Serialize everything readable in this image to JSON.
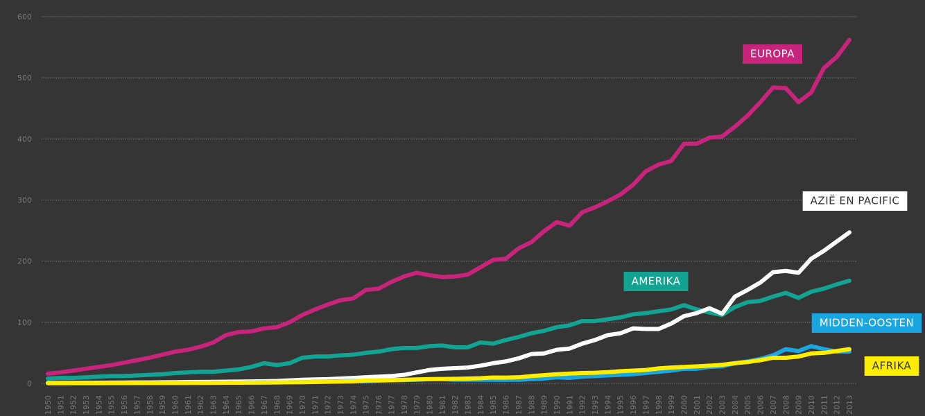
{
  "chart_data": {
    "type": "line",
    "x": [
      1950,
      1951,
      1952,
      1953,
      1954,
      1955,
      1956,
      1957,
      1958,
      1959,
      1960,
      1961,
      1962,
      1963,
      1964,
      1965,
      1966,
      1967,
      1968,
      1969,
      1970,
      1971,
      1972,
      1973,
      1974,
      1975,
      1976,
      1977,
      1978,
      1979,
      1980,
      1981,
      1982,
      1983,
      1984,
      1985,
      1986,
      1987,
      1988,
      1989,
      1990,
      1991,
      1992,
      1993,
      1994,
      1995,
      1996,
      1997,
      1998,
      1999,
      2000,
      2001,
      2002,
      2003,
      2004,
      2005,
      2006,
      2007,
      2008,
      2009,
      2010,
      2011,
      2012,
      2013
    ],
    "xlim": [
      1950,
      2013
    ],
    "ylim": [
      0,
      600
    ],
    "yticks": [
      0,
      100,
      200,
      300,
      400,
      500,
      600
    ],
    "grid": true,
    "series": [
      {
        "name": "AMERIKA",
        "color": "#12a392",
        "values": [
          8,
          9,
          9,
          10,
          11,
          12,
          12,
          13,
          14,
          15,
          17,
          18,
          19,
          19,
          21,
          23,
          27,
          33,
          30,
          33,
          42,
          44,
          44,
          46,
          47,
          50,
          52,
          56,
          58,
          58,
          61,
          62,
          59,
          59,
          67,
          65,
          71,
          76,
          82,
          86,
          92,
          95,
          102,
          102,
          105,
          108,
          113,
          115,
          118,
          121,
          128,
          121,
          116,
          112,
          125,
          133,
          135,
          142,
          148,
          140,
          150,
          155,
          162,
          168
        ]
      },
      {
        "name": "AZIË EN PACIFIC",
        "color": "#ffffff",
        "values": [
          0.8,
          0.9,
          1,
          1.1,
          1.2,
          1.3,
          1.4,
          1.5,
          1.6,
          1.8,
          2,
          2.2,
          2.4,
          2.6,
          2.8,
          3,
          3.3,
          3.6,
          4,
          5,
          6,
          6.5,
          7,
          8,
          9,
          10,
          11,
          12,
          14,
          18,
          22,
          24,
          25,
          26,
          29,
          33,
          36,
          41,
          48,
          49,
          55,
          57,
          65,
          71,
          79,
          82,
          90,
          89,
          89,
          98,
          110,
          115,
          123,
          114,
          142,
          153,
          165,
          182,
          184,
          181,
          204,
          217,
          232,
          247
        ]
      },
      {
        "name": "MIDDEN-OOSTEN",
        "color": "#1aa6e0",
        "values": [
          0.2,
          0.2,
          0.3,
          0.3,
          0.3,
          0.4,
          0.4,
          0.5,
          0.5,
          0.6,
          0.7,
          0.8,
          0.9,
          1,
          1.1,
          1.2,
          1.4,
          1.5,
          1.6,
          1.8,
          2,
          2.5,
          3,
          3.5,
          4,
          4,
          4.5,
          5,
          5.5,
          6,
          7,
          7,
          6,
          6,
          6,
          6,
          6,
          6,
          7,
          8,
          10,
          9,
          11,
          12,
          13,
          14,
          15,
          17,
          19,
          21,
          24,
          24,
          27,
          28,
          33,
          36,
          40,
          46,
          56,
          53,
          61,
          56,
          52,
          52
        ]
      },
      {
        "name": "AFRIKA",
        "color": "#ffed00",
        "values": [
          0.5,
          0.5,
          0.6,
          0.6,
          0.6,
          0.7,
          0.7,
          0.7,
          0.8,
          0.8,
          0.8,
          0.9,
          1,
          1,
          1.1,
          1.2,
          1.3,
          1.4,
          1.6,
          1.8,
          2,
          2.3,
          2.7,
          3.1,
          3.6,
          4.7,
          5,
          5.5,
          6,
          6.5,
          7,
          7.3,
          7.5,
          8,
          8.5,
          9.7,
          9.5,
          10,
          12,
          13.5,
          15,
          16,
          17,
          17.5,
          18.5,
          20,
          21,
          22,
          24.5,
          26,
          27,
          28,
          29,
          30.5,
          33,
          35,
          38,
          42,
          42,
          44,
          49,
          50,
          53,
          56
        ]
      },
      {
        "name": "EUROPA",
        "color": "#c8247b",
        "values": [
          16,
          18,
          21,
          24,
          27,
          30,
          34,
          38,
          42,
          47,
          52,
          55,
          60,
          67,
          79,
          84,
          85,
          90,
          92,
          100,
          112,
          121,
          129,
          136,
          139,
          153,
          155,
          166,
          175,
          181,
          177,
          174,
          175,
          178,
          190,
          202,
          204,
          221,
          231,
          249,
          264,
          258,
          280,
          288,
          298,
          309,
          325,
          347,
          358,
          364,
          392,
          392,
          402,
          404,
          420,
          438,
          460,
          484,
          483,
          460,
          476,
          516,
          534,
          562
        ]
      }
    ]
  }
}
